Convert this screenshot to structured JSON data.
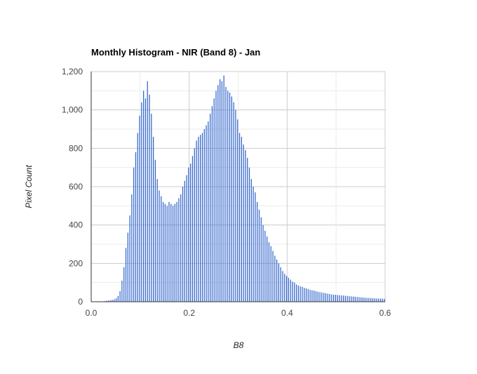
{
  "chart_data": {
    "type": "bar",
    "title": "Monthly Histogram - NIR (Band 8) - Jan",
    "xlabel": "B8",
    "ylabel": "Pixel Count",
    "xlim": [
      0.0,
      0.6
    ],
    "ylim": [
      0,
      1200
    ],
    "x_ticks": [
      "0.0",
      "0.2",
      "0.4",
      "0.6"
    ],
    "y_ticks": [
      "0",
      "200",
      "400",
      "600",
      "800",
      "1,000",
      "1,200"
    ],
    "x_tick_values": [
      0.0,
      0.2,
      0.4,
      0.6
    ],
    "y_tick_values": [
      0,
      200,
      400,
      600,
      800,
      1000,
      1200
    ],
    "grid": true,
    "bar_color": "#3366cc",
    "bin_width": 0.004,
    "series": [
      {
        "x_start": 0.026,
        "values": [
          3,
          5,
          6,
          8,
          10,
          12,
          18,
          30,
          55,
          110,
          180,
          280,
          360,
          450,
          560,
          700,
          780,
          880,
          970,
          1040,
          1100,
          1060,
          1150,
          1080,
          980,
          860,
          740,
          640,
          580,
          550,
          520,
          510,
          500,
          520,
          510,
          500,
          510,
          520,
          540,
          560,
          600,
          630,
          660,
          700,
          720,
          760,
          800,
          840,
          860,
          870,
          880,
          900,
          920,
          940,
          980,
          1020,
          1060,
          1100,
          1130,
          1160,
          1150,
          1180,
          1120,
          1100,
          1090,
          1070,
          1040,
          1000,
          950,
          880,
          860,
          820,
          790,
          750,
          700,
          640,
          600,
          570,
          520,
          480,
          440,
          400,
          370,
          340,
          310,
          290,
          265,
          240,
          220,
          200,
          180,
          160,
          145,
          135,
          125,
          115,
          105,
          100,
          90,
          85,
          80,
          78,
          72,
          70,
          66,
          62,
          60,
          58,
          55,
          52,
          50,
          48,
          46,
          44,
          42,
          40,
          38,
          37,
          36,
          35,
          34,
          33,
          32,
          31,
          30,
          29,
          28,
          27,
          26,
          25,
          24,
          23,
          22,
          21,
          20,
          20,
          19,
          18,
          18,
          17,
          17,
          16,
          16,
          15,
          15,
          14,
          14,
          13,
          13,
          12,
          12,
          12,
          11,
          11,
          10,
          10,
          10,
          9,
          9,
          9,
          8,
          8,
          8,
          7,
          7,
          7,
          6,
          6,
          6,
          5,
          5,
          5,
          5,
          4,
          4,
          4,
          4,
          3,
          3,
          3,
          3,
          3,
          2,
          2,
          2,
          2,
          2,
          2,
          2,
          1,
          1,
          1,
          1,
          1,
          1,
          1,
          1,
          1,
          1,
          1,
          1,
          1,
          1,
          1,
          1,
          1,
          1,
          1,
          1,
          1,
          1,
          1,
          1,
          1,
          1,
          1,
          1,
          1,
          1,
          1,
          1,
          1,
          1,
          1,
          1,
          1,
          1,
          1,
          1,
          1,
          1,
          1,
          1,
          1,
          1,
          1,
          1,
          1,
          1,
          1,
          1,
          1,
          1,
          1,
          1,
          1
        ]
      }
    ]
  }
}
